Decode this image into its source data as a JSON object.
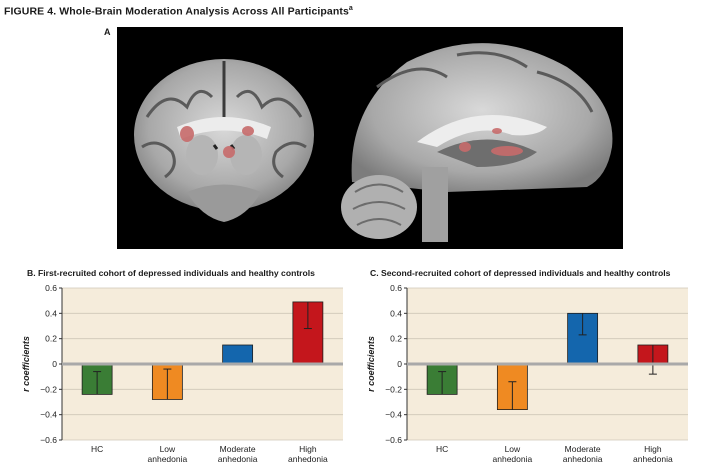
{
  "figure": {
    "title": "FIGURE 4.  Whole-Brain Moderation Analysis Across All Participants",
    "superscript": "a",
    "panel_a_label": "A"
  },
  "chart_data": [
    {
      "type": "bar",
      "title": "B. First-recruited cohort of depressed individuals and healthy controls",
      "ylabel": "r coefficients",
      "ylim": [
        -0.6,
        0.6
      ],
      "yticks": [
        0.6,
        0.4,
        0.2,
        0,
        -0.2,
        -0.4,
        -0.6
      ],
      "ytick_labels": [
        "0.6",
        "0.4",
        "0.2",
        "0",
        "−0.2",
        "−0.4",
        "−0.6"
      ],
      "categories": [
        [
          "HC"
        ],
        [
          "Low",
          "anhedonia"
        ],
        [
          "Moderate",
          "anhedonia"
        ],
        [
          "High",
          "anhedonia"
        ]
      ],
      "values": [
        -0.24,
        -0.28,
        0.15,
        0.49
      ],
      "errors": [
        0.18,
        0.24,
        0.0,
        0.21
      ],
      "colors": [
        "#3a7d35",
        "#ef8a22",
        "#1466ad",
        "#c4161c"
      ],
      "grid": true,
      "background": "#f5ecdb"
    },
    {
      "type": "bar",
      "title": "C. Second-recruited cohort of depressed individuals and healthy controls",
      "ylabel": "r coefficients",
      "ylim": [
        -0.6,
        0.6
      ],
      "yticks": [
        0.6,
        0.4,
        0.2,
        0,
        -0.2,
        -0.4,
        -0.6
      ],
      "ytick_labels": [
        "0.6",
        "0.4",
        "0.2",
        "0",
        "−0.2",
        "−0.4",
        "−0.6"
      ],
      "categories": [
        [
          "HC"
        ],
        [
          "Low",
          "anhedonia"
        ],
        [
          "Moderate",
          "anhedonia"
        ],
        [
          "High",
          "anhedonia"
        ]
      ],
      "values": [
        -0.24,
        -0.36,
        0.4,
        0.15
      ],
      "errors": [
        0.18,
        0.22,
        0.17,
        0.23
      ],
      "colors": [
        "#3a7d35",
        "#ef8a22",
        "#1466ad",
        "#c4161c"
      ],
      "grid": true,
      "background": "#f5ecdb"
    }
  ]
}
